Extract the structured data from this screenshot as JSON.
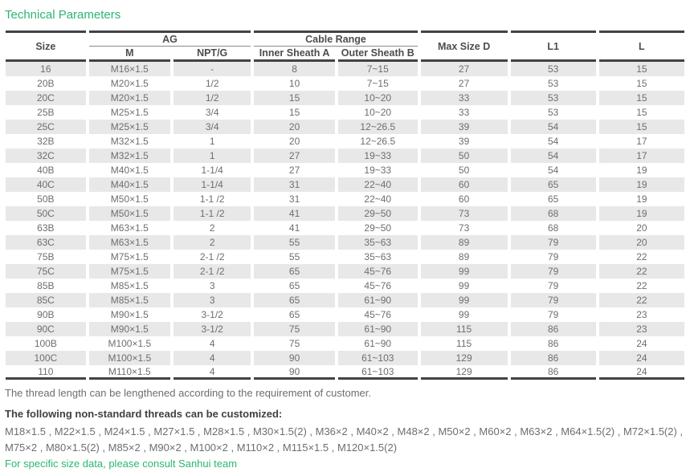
{
  "title": "Technical Parameters",
  "colors": {
    "accent_green": "#2bb673",
    "row_shade": "#e8e8e8",
    "border_dark": "#414244",
    "header_text": "#4c4d4f",
    "body_text": "#6d6e71"
  },
  "table": {
    "headers": {
      "size": "Size",
      "ag": "AG",
      "m": "M",
      "npt_g": "NPT/G",
      "cable_range": "Cable Range",
      "inner_sheath_a": "Inner Sheath A",
      "outer_sheath_b": "Outer Sheath B",
      "max_size_d": "Max Size D",
      "l1": "L1",
      "l": "L"
    },
    "rows": [
      [
        "16",
        "M16×1.5",
        "-",
        "8",
        "7~15",
        "27",
        "53",
        "15"
      ],
      [
        "20B",
        "M20×1.5",
        "1/2",
        "10",
        "7~15",
        "27",
        "53",
        "15"
      ],
      [
        "20C",
        "M20×1.5",
        "1/2",
        "15",
        "10~20",
        "33",
        "53",
        "15"
      ],
      [
        "25B",
        "M25×1.5",
        "3/4",
        "15",
        "10~20",
        "33",
        "53",
        "15"
      ],
      [
        "25C",
        "M25×1.5",
        "3/4",
        "20",
        "12~26.5",
        "39",
        "54",
        "15"
      ],
      [
        "32B",
        "M32×1.5",
        "1",
        "20",
        "12~26.5",
        "39",
        "54",
        "17"
      ],
      [
        "32C",
        "M32×1.5",
        "1",
        "27",
        "19~33",
        "50",
        "54",
        "17"
      ],
      [
        "40B",
        "M40×1.5",
        "1-1/4",
        "27",
        "19~33",
        "50",
        "54",
        "19"
      ],
      [
        "40C",
        "M40×1.5",
        "1-1/4",
        "31",
        "22~40",
        "60",
        "65",
        "19"
      ],
      [
        "50B",
        "M50×1.5",
        "1-1 /2",
        "31",
        "22~40",
        "60",
        "65",
        "19"
      ],
      [
        "50C",
        "M50×1.5",
        "1-1 /2",
        "41",
        "29~50",
        "73",
        "68",
        "19"
      ],
      [
        "63B",
        "M63×1.5",
        "2",
        "41",
        "29~50",
        "73",
        "68",
        "20"
      ],
      [
        "63C",
        "M63×1.5",
        "2",
        "55",
        "35~63",
        "89",
        "79",
        "20"
      ],
      [
        "75B",
        "M75×1.5",
        "2-1 /2",
        "55",
        "35~63",
        "89",
        "79",
        "22"
      ],
      [
        "75C",
        "M75×1.5",
        "2-1 /2",
        "65",
        "45~76",
        "99",
        "79",
        "22"
      ],
      [
        "85B",
        "M85×1.5",
        "3",
        "65",
        "45~76",
        "99",
        "79",
        "22"
      ],
      [
        "85C",
        "M85×1.5",
        "3",
        "65",
        "61~90",
        "99",
        "79",
        "22"
      ],
      [
        "90B",
        "M90×1.5",
        "3-1/2",
        "65",
        "45~76",
        "99",
        "79",
        "23"
      ],
      [
        "90C",
        "M90×1.5",
        "3-1/2",
        "75",
        "61~90",
        "115",
        "86",
        "23"
      ],
      [
        "100B",
        "M100×1.5",
        "4",
        "75",
        "61~90",
        "115",
        "86",
        "24"
      ],
      [
        "100C",
        "M100×1.5",
        "4",
        "90",
        "61~103",
        "129",
        "86",
        "24"
      ],
      [
        "110",
        "M110×1.5",
        "4",
        "90",
        "61~103",
        "129",
        "86",
        "24"
      ]
    ]
  },
  "notes": {
    "thread_length": "The thread length can be lengthened according to the requirement of customer.",
    "customized_heading": "The following non-standard threads can be customized:",
    "threads_line1": "M18×1.5 , M22×1.5 , M24×1.5 , M27×1.5 , M28×1.5 , M30×1.5(2) , M36×2 , M40×2 , M48×2 , M50×2 , M60×2 , M63×2 , M64×1.5(2) , M72×1.5(2) ,",
    "threads_line2": "M75×2 , M80×1.5(2) , M85×2 , M90×2 , M100×2 , M110×2 , M115×1.5 , M120×1.5(2)",
    "consult": "For specific size data, please consult Sanhui team"
  }
}
